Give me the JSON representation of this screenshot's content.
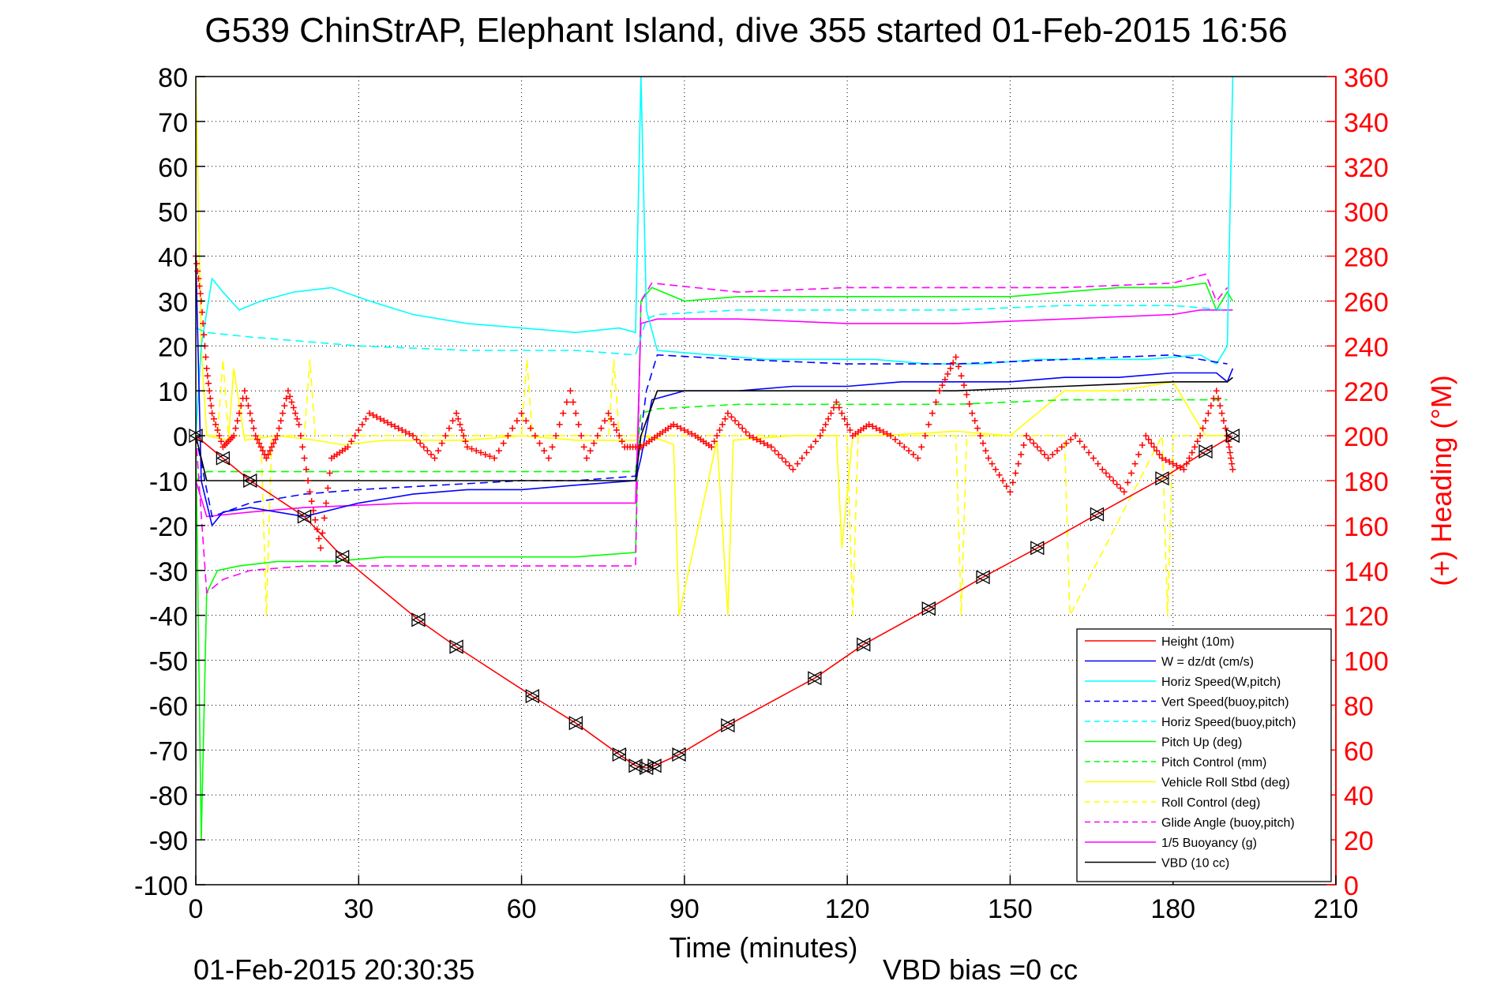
{
  "chart_data": {
    "type": "line",
    "title": "G539 ChinStrAP, Elephant Island, dive 355 started 01-Feb-2015 16:56",
    "xlabel": "Time (minutes)",
    "ylabel_right": "(+) Heading (°M)",
    "footer_left": "01-Feb-2015 20:30:35",
    "footer_right": "VBD bias =0 cc",
    "xlim": [
      0,
      210
    ],
    "ylim": [
      -100,
      80
    ],
    "ylim_right": [
      0,
      360
    ],
    "xticks": [
      "0",
      "30",
      "60",
      "90",
      "120",
      "150",
      "180",
      "210"
    ],
    "yticks": [
      "80",
      "70",
      "60",
      "50",
      "40",
      "30",
      "20",
      "10",
      "0",
      "-10",
      "-20",
      "-30",
      "-40",
      "-50",
      "-60",
      "-70",
      "-80",
      "-90",
      "-100"
    ],
    "yticks_right": [
      "360",
      "340",
      "320",
      "300",
      "280",
      "260",
      "240",
      "220",
      "200",
      "180",
      "160",
      "140",
      "120",
      "100",
      "80",
      "60",
      "40",
      "20",
      "0"
    ],
    "grid": true,
    "legend_position": "bottom-right",
    "colors": {
      "axis": "#000000",
      "grid": "#000000",
      "right_axis": "#ff0000",
      "heading": "#ff0000"
    },
    "series": [
      {
        "name": "Height (10m)",
        "color": "#ff0000",
        "dash": "solid",
        "x": [
          0,
          5,
          10,
          20,
          27,
          41,
          48,
          62,
          70,
          78,
          81,
          83,
          84.5,
          89,
          98,
          114,
          123,
          135,
          145,
          155,
          166,
          178,
          186,
          191
        ],
        "y": [
          0,
          -5,
          -10,
          -18,
          -27,
          -41,
          -47,
          -58,
          -64,
          -71,
          -73.5,
          -74,
          -73.5,
          -71,
          -64.5,
          -54,
          -46.5,
          -38.5,
          -31.5,
          -25,
          -17.5,
          -9.5,
          -3.5,
          0
        ]
      },
      {
        "name": "W = dz/dt (cm/s)",
        "color": "#0000ff",
        "dash": "solid",
        "x": [
          0,
          1,
          3,
          5,
          10,
          20,
          30,
          40,
          50,
          60,
          70,
          81,
          82,
          84,
          90,
          100,
          110,
          120,
          130,
          140,
          150,
          160,
          170,
          180,
          188,
          190,
          191
        ],
        "y": [
          40,
          -10,
          -20,
          -17,
          -16,
          -18,
          -15,
          -13,
          -12,
          -12,
          -11,
          -10,
          -5,
          8,
          10,
          10,
          11,
          11,
          12,
          12,
          12,
          13,
          13,
          14,
          14,
          12,
          15
        ]
      },
      {
        "name": "Horiz Speed(W,pitch)",
        "color": "#00ffff",
        "dash": "solid",
        "x": [
          0,
          1,
          3,
          5,
          8,
          12,
          18,
          25,
          32,
          40,
          50,
          60,
          70,
          78,
          81,
          82,
          83,
          85,
          95,
          105,
          115,
          125,
          135,
          145,
          155,
          165,
          175,
          185,
          188,
          190,
          191
        ],
        "y": [
          0,
          20,
          35,
          32,
          28,
          30,
          32,
          33,
          30,
          27,
          25,
          24,
          23,
          24,
          23,
          80,
          28,
          19,
          18,
          17,
          17,
          17,
          16,
          16,
          17,
          17,
          17,
          18,
          16,
          20,
          80
        ]
      },
      {
        "name": "Vert Speed(buoy,pitch)",
        "color": "#0000ff",
        "dash": "dashed",
        "x": [
          0,
          3,
          10,
          20,
          30,
          45,
          60,
          70,
          81,
          83,
          85,
          100,
          120,
          140,
          160,
          180,
          190
        ],
        "y": [
          0,
          -18,
          -15,
          -13,
          -12,
          -11,
          -10,
          -10,
          -9,
          10,
          18,
          17,
          16,
          16,
          17,
          18,
          16
        ]
      },
      {
        "name": "Horiz Speed(buoy,pitch)",
        "color": "#00ffff",
        "dash": "dashed",
        "x": [
          0,
          2,
          10,
          20,
          30,
          50,
          70,
          81,
          83,
          85,
          100,
          120,
          140,
          160,
          180,
          190
        ],
        "y": [
          24,
          23,
          22,
          21,
          20,
          19,
          19,
          18,
          26,
          27,
          28,
          28,
          28,
          29,
          29,
          28
        ]
      },
      {
        "name": "Pitch Up (deg)",
        "color": "#00ff00",
        "dash": "solid",
        "x": [
          0,
          1,
          2,
          4,
          8,
          15,
          25,
          35,
          50,
          60,
          70,
          81,
          82,
          84,
          90,
          100,
          110,
          120,
          130,
          140,
          150,
          160,
          170,
          180,
          186,
          188,
          190,
          191
        ],
        "y": [
          0,
          -90,
          -35,
          -30,
          -29,
          -28,
          -28,
          -27,
          -27,
          -27,
          -27,
          -26,
          30,
          33,
          30,
          31,
          31,
          31,
          31,
          31,
          31,
          32,
          33,
          33,
          34,
          28,
          32,
          30
        ]
      },
      {
        "name": "Pitch Control (mm)",
        "color": "#00ff00",
        "dash": "dashed",
        "x": [
          0,
          2,
          10,
          20,
          40,
          60,
          81,
          82,
          85,
          100,
          120,
          140,
          160,
          180,
          190
        ],
        "y": [
          -10,
          -8,
          -8,
          -8,
          -8,
          -8,
          -8,
          5,
          6,
          7,
          7,
          7,
          8,
          8,
          8
        ]
      },
      {
        "name": "Vehicle Roll Stbd (deg)",
        "color": "#ffff00",
        "dash": "solid",
        "x": [
          0,
          1,
          2,
          6,
          7,
          9,
          15,
          22,
          27,
          35,
          50,
          60,
          70,
          81,
          82,
          86,
          88,
          89,
          96,
          98,
          99,
          110,
          118,
          119,
          121,
          126,
          140,
          150,
          160,
          170,
          180,
          186,
          190
        ],
        "y": [
          80,
          20,
          0,
          -1,
          15,
          -1,
          0,
          -1,
          -2,
          -1,
          -1,
          0,
          -1,
          -1,
          0,
          -1,
          -2,
          -40,
          -1,
          -40,
          -1,
          0,
          0,
          -25,
          0,
          0,
          1,
          0,
          10,
          10,
          12,
          0,
          0
        ]
      },
      {
        "name": "Roll Control (deg)",
        "color": "#ffff00",
        "dash": "dashed",
        "x": [
          0,
          4,
          5,
          6,
          12,
          13,
          14,
          20,
          21,
          22,
          30,
          40,
          60,
          61,
          62,
          76,
          77,
          78,
          90,
          105,
          120,
          121,
          122,
          140,
          141,
          142,
          160,
          161,
          178,
          179,
          180,
          190
        ],
        "y": [
          0,
          0,
          17,
          0,
          0,
          -40,
          0,
          0,
          17,
          0,
          0,
          0,
          0,
          17,
          0,
          0,
          17,
          0,
          0,
          0,
          0,
          -40,
          0,
          0,
          -40,
          0,
          0,
          -40,
          0,
          -40,
          0,
          0
        ]
      },
      {
        "name": "Glide Angle (buoy,pitch)",
        "color": "#ff00ff",
        "dash": "dashed",
        "x": [
          0,
          2,
          5,
          10,
          20,
          40,
          60,
          81,
          82,
          84,
          100,
          120,
          140,
          160,
          180,
          186,
          188,
          190
        ],
        "y": [
          0,
          -35,
          -32,
          -30,
          -29,
          -29,
          -29,
          -29,
          30,
          34,
          32,
          33,
          33,
          33,
          34,
          36,
          30,
          33
        ]
      },
      {
        "name": "1/5 Buoyancy (g)",
        "color": "#ff00ff",
        "dash": "solid",
        "x": [
          0,
          2,
          10,
          20,
          40,
          60,
          81,
          82,
          85,
          100,
          120,
          140,
          160,
          180,
          185,
          191
        ],
        "y": [
          -10,
          -18,
          -17,
          -16,
          -15,
          -15,
          -15,
          25,
          26,
          26,
          25,
          25,
          26,
          27,
          28,
          28
        ]
      },
      {
        "name": "VBD (10 cc)",
        "color": "#000000",
        "dash": "solid",
        "x": [
          0,
          2,
          81,
          82,
          85,
          100,
          120,
          140,
          160,
          180,
          190,
          191
        ],
        "y": [
          0,
          -10,
          -10,
          0,
          10,
          10,
          10,
          10,
          11,
          12,
          12,
          13
        ]
      }
    ],
    "heading": {
      "marker": "+",
      "axis": "right",
      "x": [
        0,
        1,
        2,
        3,
        5,
        7,
        9,
        11,
        13,
        15,
        17,
        19,
        21,
        23,
        25,
        28,
        32,
        36,
        40,
        44,
        48,
        50,
        55,
        60,
        65,
        69,
        72,
        76,
        79,
        82,
        85,
        88,
        92,
        95,
        98,
        102,
        106,
        110,
        115,
        118,
        121,
        124,
        128,
        133,
        137,
        140,
        143,
        146,
        150,
        153,
        157,
        162,
        167,
        171,
        175,
        178,
        182,
        185,
        188,
        190,
        191
      ],
      "y": [
        280,
        260,
        230,
        210,
        195,
        200,
        220,
        200,
        190,
        200,
        220,
        205,
        175,
        150,
        190,
        195,
        210,
        205,
        200,
        190,
        210,
        195,
        190,
        210,
        190,
        220,
        190,
        210,
        195,
        195,
        200,
        205,
        200,
        195,
        210,
        200,
        195,
        185,
        200,
        215,
        200,
        205,
        200,
        190,
        220,
        235,
        210,
        190,
        175,
        200,
        190,
        200,
        185,
        175,
        200,
        190,
        185,
        200,
        220,
        200,
        185
      ]
    }
  }
}
